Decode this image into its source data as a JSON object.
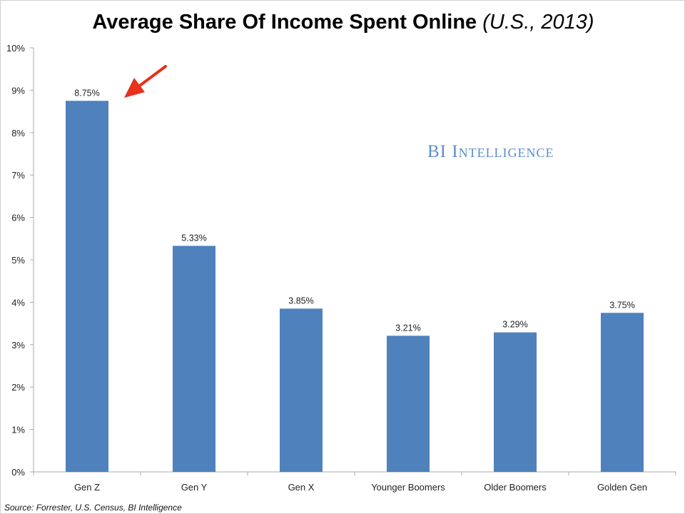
{
  "chart_data": {
    "type": "bar",
    "title": "Average Share Of Income Spent Online",
    "subtitle": "(U.S., 2013)",
    "categories": [
      "Gen Z",
      "Gen Y",
      "Gen X",
      "Younger Boomers",
      "Older Boomers",
      "Golden Gen"
    ],
    "values": [
      8.75,
      5.33,
      3.85,
      3.21,
      3.29,
      3.75
    ],
    "data_labels": [
      "8.75%",
      "5.33%",
      "3.85%",
      "3.21%",
      "3.29%",
      "3.75%"
    ],
    "ylim": [
      0,
      10
    ],
    "yticks": [
      "0%",
      "1%",
      "2%",
      "3%",
      "4%",
      "5%",
      "6%",
      "7%",
      "8%",
      "9%",
      "10%"
    ],
    "xlabel": "",
    "ylabel": "",
    "grid": false,
    "bar_color": "#4f81bd",
    "annotation": "red arrow pointing to Gen Z bar",
    "arrow_color": "#e8301c"
  },
  "watermark": "BI Intelligence",
  "source": "Source: Forrester, U.S. Census, BI Intelligence"
}
